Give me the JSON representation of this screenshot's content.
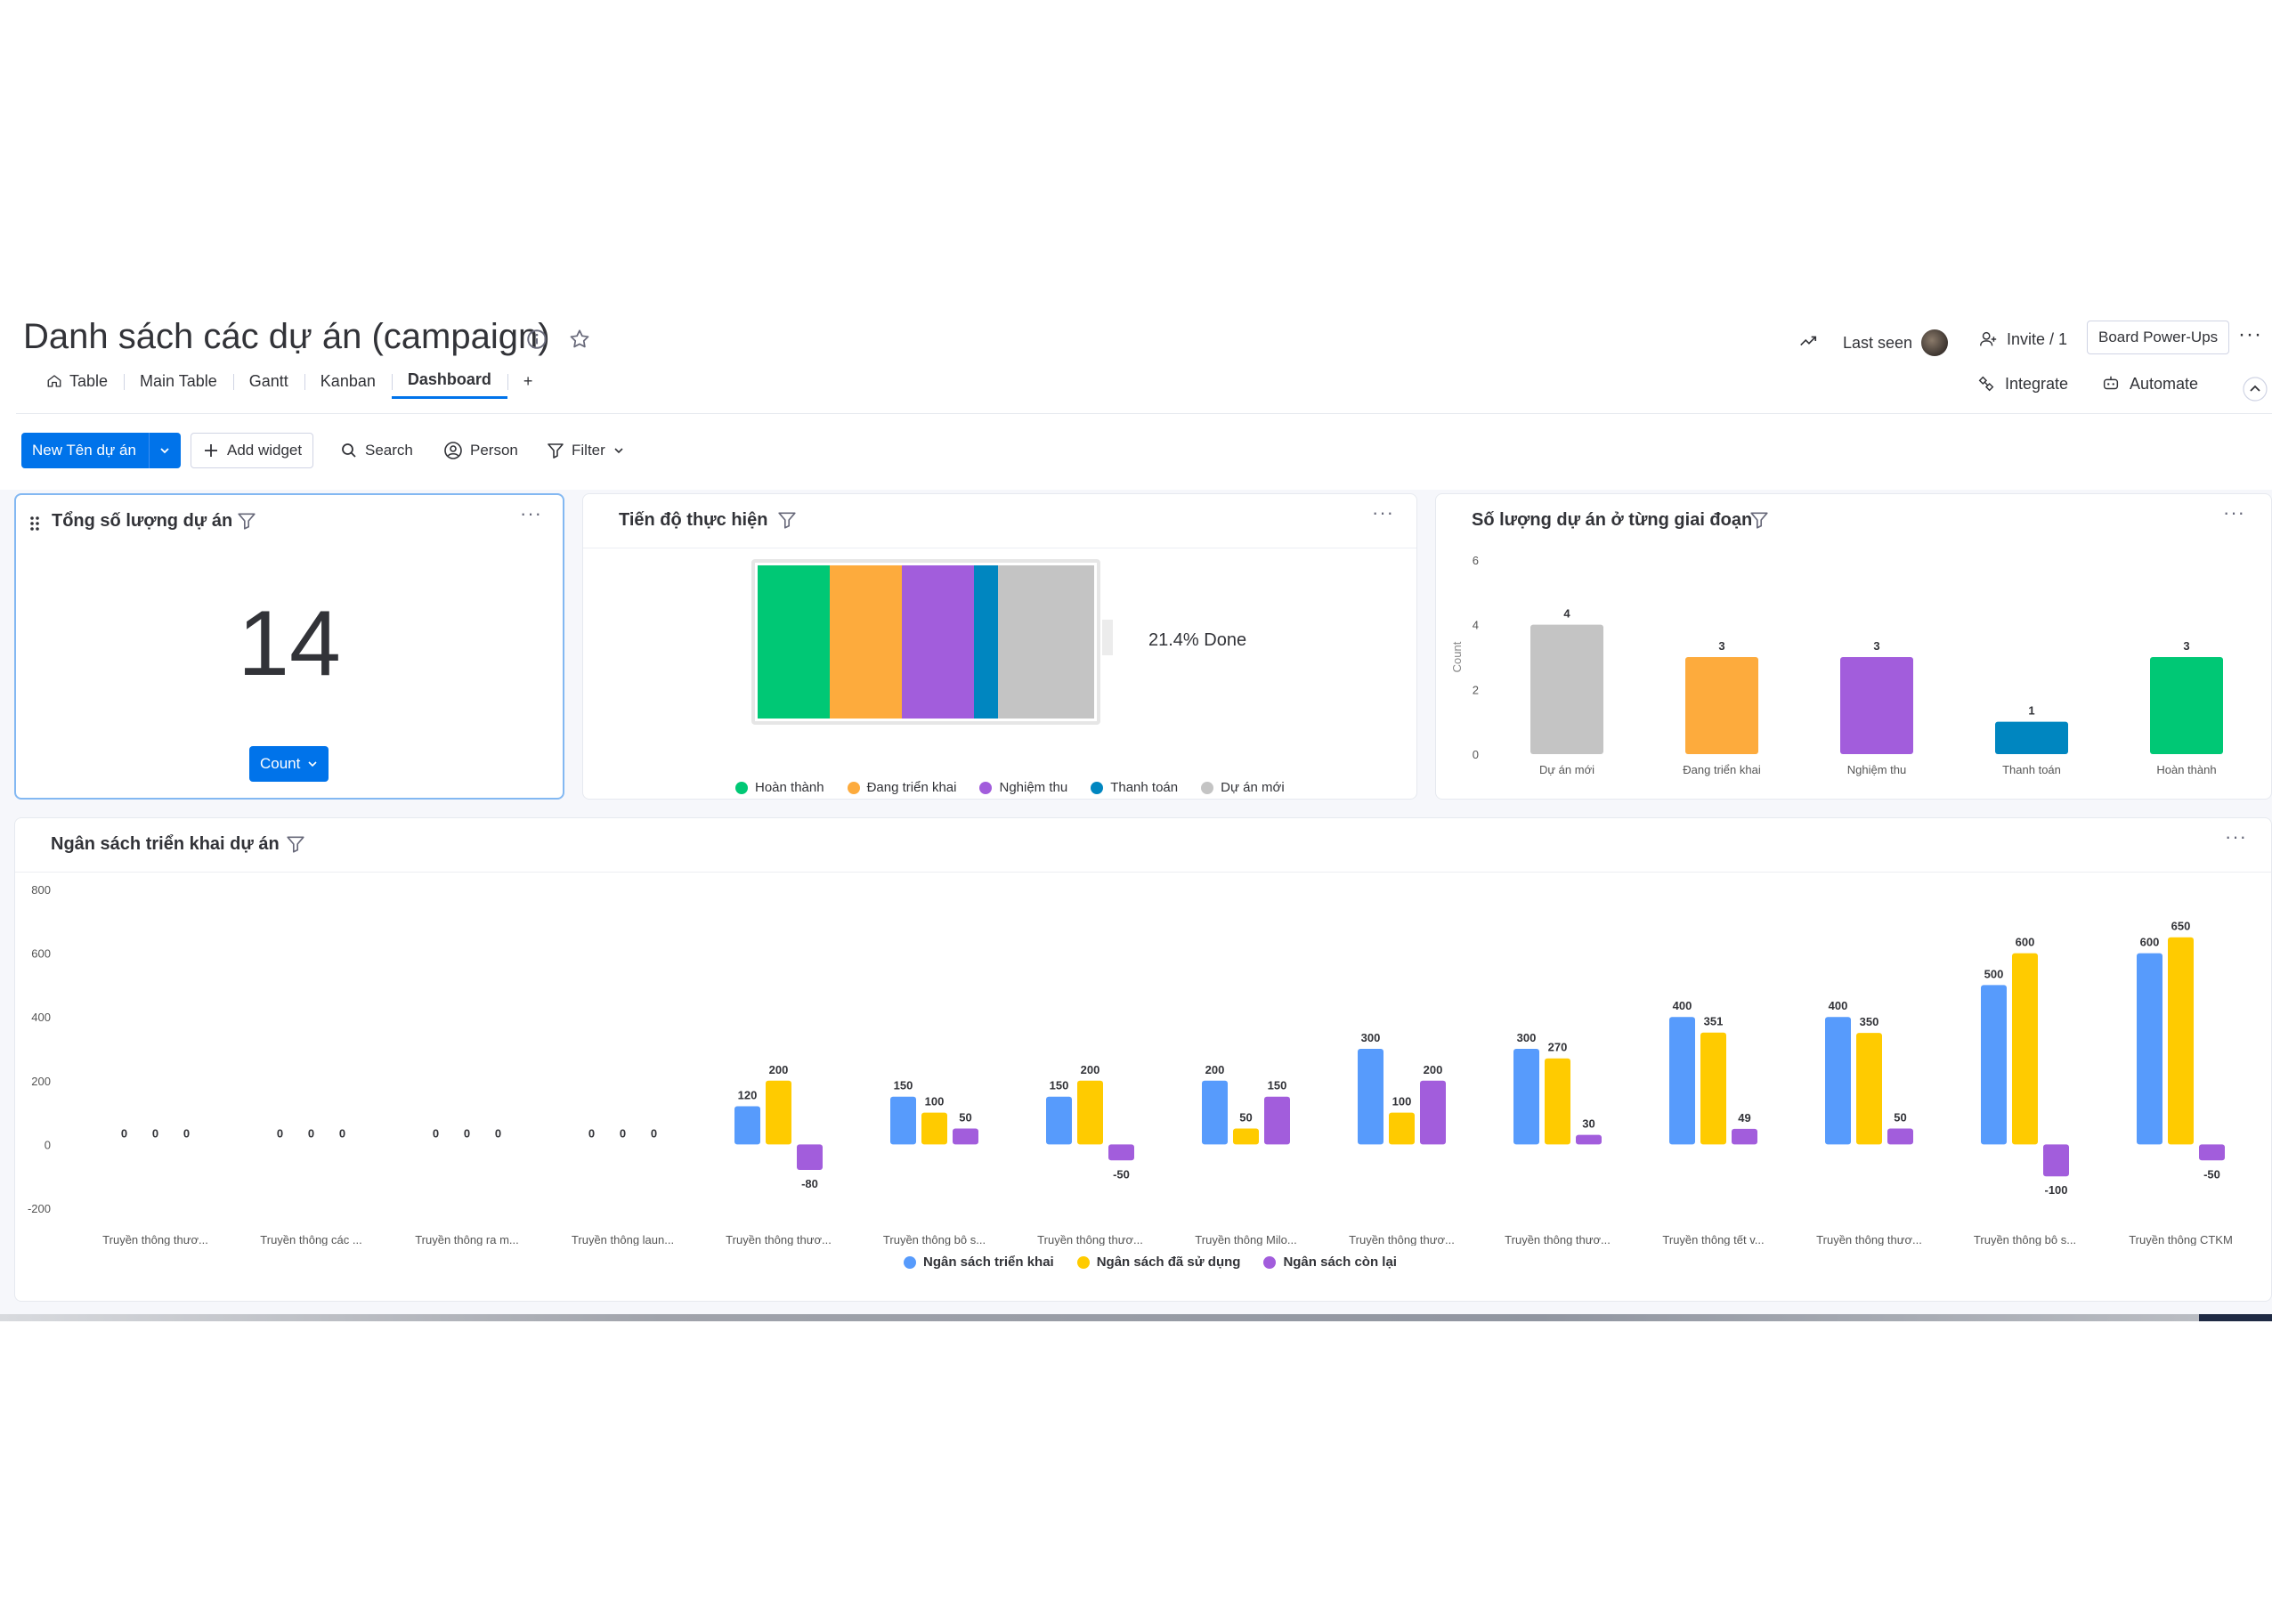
{
  "board": {
    "title": "Danh sách các dự án (campaign)",
    "last_seen_label": "Last seen",
    "invite_label": "Invite / 1",
    "powerups_label": "Board Power-Ups",
    "more_label": "···"
  },
  "tabs": [
    {
      "label": "Table",
      "active": false
    },
    {
      "label": "Main Table",
      "active": false
    },
    {
      "label": "Gantt",
      "active": false
    },
    {
      "label": "Kanban",
      "active": false
    },
    {
      "label": "Dashboard",
      "active": true
    }
  ],
  "tab_add_label": "+",
  "integrate_label": "Integrate",
  "automate_label": "Automate",
  "toolbar": {
    "new_item_label": "New Tên dự án",
    "add_widget_label": "Add widget",
    "search_label": "Search",
    "person_label": "Person",
    "filter_label": "Filter"
  },
  "colors": {
    "accent": "#0073ea",
    "hoan_thanh": "#00c875",
    "dang_trien_khai": "#fdab3d",
    "nghiem_thu": "#a25ddc",
    "thanh_toan": "#0086c0",
    "du_an_moi": "#c4c4c4",
    "budget_deploy": "#579bfc",
    "budget_used": "#ffcb00",
    "budget_left": "#a25ddc"
  },
  "widgets": {
    "total": {
      "title": "Tổng số lượng dự án",
      "value": "14",
      "count_label": "Count",
      "more": "···"
    },
    "progress": {
      "title": "Tiến độ thực hiện",
      "done_text": "21.4% Done",
      "more": "···",
      "segments": [
        {
          "label": "Hoàn thành",
          "count": 3,
          "color": "#00c875"
        },
        {
          "label": "Đang triển khai",
          "count": 3,
          "color": "#fdab3d"
        },
        {
          "label": "Nghiệm thu",
          "count": 3,
          "color": "#a25ddc"
        },
        {
          "label": "Thanh toán",
          "count": 1,
          "color": "#0086c0"
        },
        {
          "label": "Dự án mới",
          "count": 4,
          "color": "#c4c4c4"
        }
      ]
    },
    "stages": {
      "title": "Số lượng dự án ở từng giai đoạn",
      "more": "···"
    },
    "budget": {
      "title": "Ngân sách triển khai dự án",
      "more": "···"
    }
  },
  "chart_data": [
    {
      "type": "bar",
      "title": "Số lượng dự án ở từng giai đoạn",
      "ylabel": "Count",
      "ylim": [
        0,
        6
      ],
      "yticks": [
        "6",
        "4",
        "2",
        "0"
      ],
      "categories": [
        "Dự án mới",
        "Đang triển khai",
        "Nghiệm thu",
        "Thanh toán",
        "Hoàn thành"
      ],
      "values": [
        4,
        3,
        3,
        1,
        3
      ],
      "colors": [
        "#c4c4c4",
        "#fdab3d",
        "#a25ddc",
        "#0086c0",
        "#00c875"
      ],
      "grid": false
    },
    {
      "type": "bar",
      "title": "Ngân sách triển khai dự án",
      "ylim": [
        -200,
        800
      ],
      "yticks": [
        "800",
        "600",
        "400",
        "200",
        "0",
        "-200"
      ],
      "categories": [
        "Truyền thông thươ...",
        "Truyền thông các ...",
        "Truyền thông ra m...",
        "Truyền thông laun...",
        "Truyền thông thươ...",
        "Truyền thông bô s...",
        "Truyền thông thươ...",
        "Truyền thông Milo...",
        "Truyền thông thươ...",
        "Truyền thông thươ...",
        "Truyền thông tết v...",
        "Truyền thông thươ...",
        "Truyền thông bô s...",
        "Truyền thông CTKM"
      ],
      "series": [
        {
          "name": "Ngân sách triển khai",
          "color": "#579bfc",
          "values": [
            0,
            0,
            0,
            0,
            120,
            150,
            150,
            200,
            300,
            300,
            400,
            400,
            500,
            600
          ]
        },
        {
          "name": "Ngân sách đã sử dụng",
          "color": "#ffcb00",
          "values": [
            0,
            0,
            0,
            0,
            200,
            100,
            200,
            50,
            100,
            270,
            351,
            350,
            600,
            650
          ]
        },
        {
          "name": "Ngân sách còn lại",
          "color": "#a25ddc",
          "values": [
            0,
            0,
            0,
            0,
            -80,
            50,
            -50,
            150,
            200,
            30,
            49,
            50,
            -100,
            -50
          ]
        }
      ],
      "legend": "bottom",
      "grid": false
    }
  ]
}
